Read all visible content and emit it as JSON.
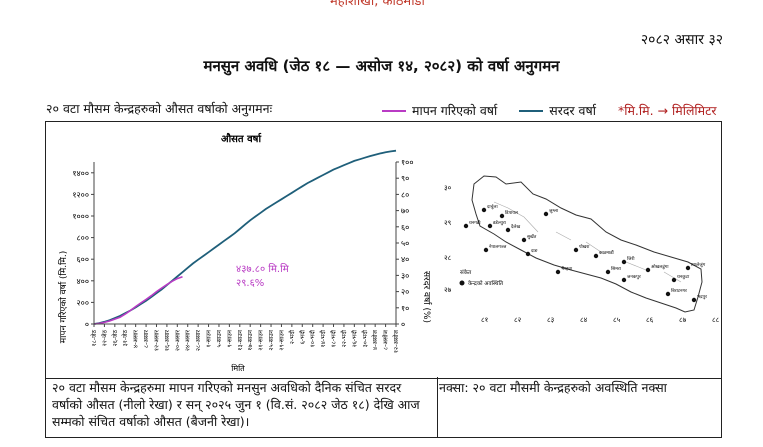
{
  "header": {
    "top_cut_text": "महाशाखा, काठमाडौं",
    "report_date": "२०८२ असार ३२",
    "title": "मनसुन अवधि (जेठ १८ — असोज १४, २०८२) को वर्षा अनुगमन",
    "intro": "२० वटा मौसम केन्द्रहरुको औसत वर्षाको अनुगमनः"
  },
  "legend": {
    "measured_label": "मापन गरिएको वर्षा",
    "normal_label": "सरदर वर्षा",
    "unit_note": "*मि.मि. → मिलिमिटर"
  },
  "colors": {
    "measured": "#b93bc4",
    "normal": "#1f5f7a",
    "unit_note": "#b02020",
    "annotation": "#b93bc4"
  },
  "chart_data": {
    "type": "line",
    "title": "औसत वर्षा",
    "xlabel": "मिति",
    "ylabel_left": "मापन गरिएको वर्षा (मि.मि.)",
    "ylabel_right": "सरदर वर्षा (%)",
    "ylim_left": [
      0,
      1500
    ],
    "ylim_right": [
      0,
      100
    ],
    "yticks_left": [
      0,
      200,
      400,
      600,
      800,
      1000,
      1200,
      1400
    ],
    "yticks_left_labels": [
      "०",
      "२००",
      "४००",
      "६००",
      "८००",
      "१०००",
      "१२००",
      "१४००"
    ],
    "yticks_right": [
      0,
      10,
      20,
      30,
      40,
      50,
      60,
      70,
      80,
      90,
      100
    ],
    "yticks_right_labels": [
      "०",
      "१०",
      "२०",
      "३०",
      "४०",
      "५०",
      "६०",
      "७०",
      "८०",
      "९०",
      "१००"
    ],
    "x_ticks": [
      "१८-जेठ",
      "२२-जेठ",
      "२६-जेठ",
      "३१-जेठ",
      "४-असार",
      "८-असार",
      "१२-असार",
      "१६-असार",
      "२०-असार",
      "२४-असार",
      "२८-असार",
      "१-साउन",
      "५-साउन",
      "९-साउन",
      "१३-साउन",
      "१७-साउन",
      "२१-साउन",
      "२५-साउन",
      "२९-साउन",
      "२-भदौ",
      "६-भदौ",
      "१०-भदौ",
      "१४-भदौ",
      "१८-भदौ",
      "२२-भदौ",
      "२६-भदौ",
      "३०-भदौ",
      "४-असोज",
      "८-असोज",
      "१२-असोज"
    ],
    "series": [
      {
        "name": "सरदर वर्षा",
        "x": [
          0,
          2,
          4,
          6,
          8,
          10,
          12,
          14,
          16,
          18,
          20,
          22,
          24,
          26,
          28,
          30,
          32,
          34,
          36,
          38,
          40,
          42,
          44,
          46,
          48,
          50,
          52,
          54,
          56,
          58,
          60,
          62,
          64,
          66,
          68,
          70,
          72,
          74,
          76,
          78,
          80,
          82,
          84,
          86,
          88,
          90,
          92,
          94,
          96,
          98,
          100,
          102,
          104,
          106,
          108,
          110,
          112,
          114,
          116
        ],
        "values": [
          0,
          8,
          20,
          35,
          55,
          75,
          100,
          125,
          155,
          185,
          215,
          250,
          285,
          320,
          360,
          400,
          440,
          480,
          520,
          560,
          595,
          630,
          665,
          700,
          735,
          770,
          805,
          840,
          880,
          920,
          960,
          995,
          1030,
          1065,
          1095,
          1125,
          1155,
          1185,
          1215,
          1245,
          1275,
          1305,
          1330,
          1355,
          1380,
          1405,
          1430,
          1450,
          1470,
          1490,
          1510,
          1525,
          1540,
          1555,
          1568,
          1580,
          1590,
          1598,
          1605
        ]
      },
      {
        "name": "मापन गरिएको वर्षा",
        "x": [
          0,
          2,
          4,
          6,
          8,
          10,
          12,
          14,
          16,
          18,
          20,
          22,
          24,
          26,
          28,
          30,
          32,
          34
        ],
        "values": [
          0,
          6,
          15,
          28,
          45,
          62,
          92,
          125,
          162,
          195,
          228,
          262,
          300,
          333,
          365,
          395,
          420,
          437.8
        ]
      }
    ],
    "annotation_value": "४३७.८० मि.मि",
    "annotation_percent": "२९.६%"
  },
  "map": {
    "axis_y_labels": [
      "३०",
      "२९",
      "२८",
      "२७"
    ],
    "axis_x_labels": [
      "८१",
      "८२",
      "८३",
      "८४",
      "८५",
      "८६",
      "८७",
      "८८"
    ],
    "legend_title": "संकेत",
    "legend_item": "केन्द्रको अवस्थिति",
    "stations": [
      "दार्चुला",
      "डिपायल",
      "जुम्ला",
      "धनगढी",
      "सुर्खेत",
      "दैलेख",
      "नेपालगञ्ज",
      "दाङ",
      "भैरहवा",
      "पोखरा",
      "काठमाडौं",
      "सिमरा",
      "जिरी",
      "ओखलढुंगा",
      "ताप्लेजुंग",
      "धनकुटा",
      "बिराटनगर",
      "जनकपुर",
      "डडेल्धुरा",
      "भद्रपुर"
    ]
  },
  "captions": {
    "chart": "२० वटा मौसम केन्द्रहरुमा मापन गरिएको मनसुन अवधिको दैनिक संचित सरदर वर्षाको औसत (नीलो रेखा) र सन् २०२५ जुन १ (वि.सं. २०८२ जेठ १८) देखि आज सम्मको संचित वर्षाको औसत (बैजनी रेखा)।",
    "map": "नक्सा: २० वटा मौसमी केन्द्रहरुको अवस्थिति नक्सा"
  }
}
